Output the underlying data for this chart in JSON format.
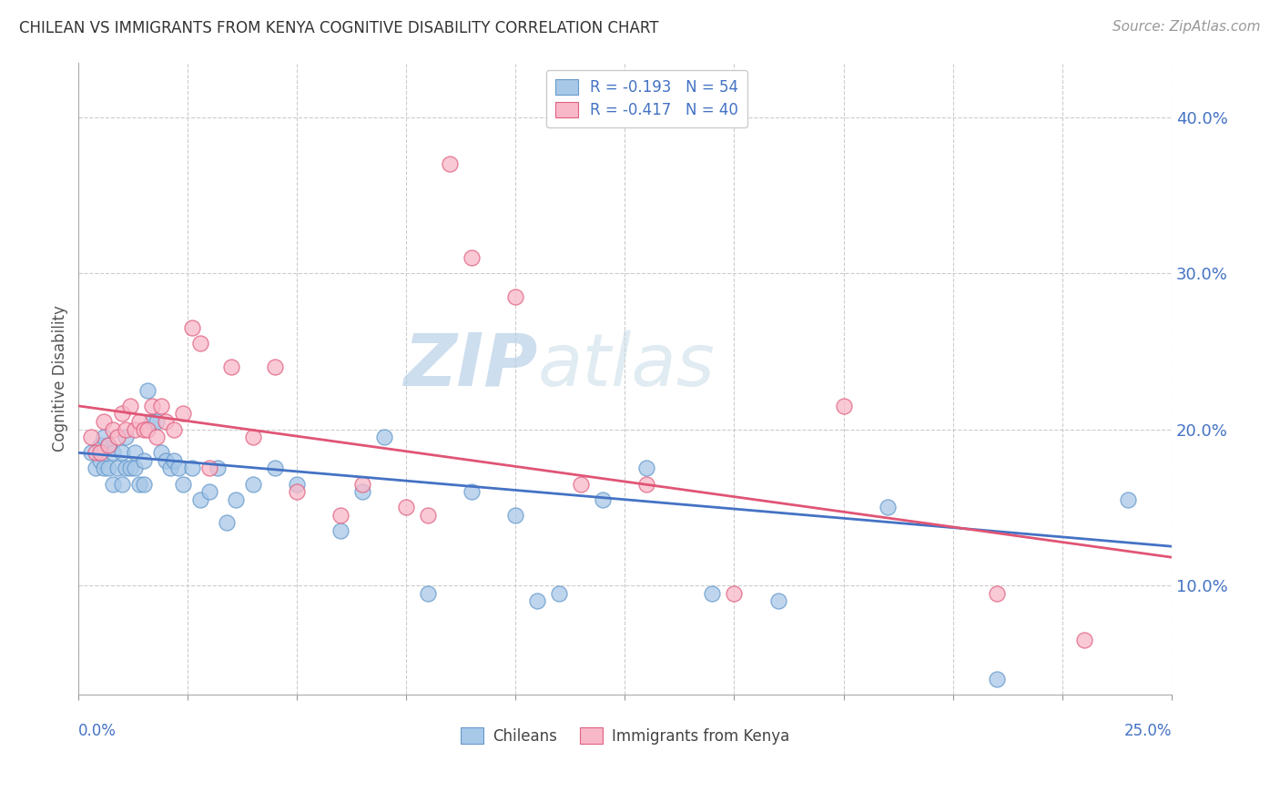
{
  "title": "CHILEAN VS IMMIGRANTS FROM KENYA COGNITIVE DISABILITY CORRELATION CHART",
  "source": "Source: ZipAtlas.com",
  "ylabel": "Cognitive Disability",
  "yticks": [
    0.1,
    0.2,
    0.3,
    0.4
  ],
  "ytick_labels": [
    "10.0%",
    "20.0%",
    "30.0%",
    "40.0%"
  ],
  "xlim": [
    0.0,
    0.25
  ],
  "ylim": [
    0.03,
    0.435
  ],
  "watermark_zip": "ZIP",
  "watermark_atlas": "atlas",
  "blue_scatter_color": "#a8c8e8",
  "blue_edge_color": "#6699cc",
  "pink_scatter_color": "#f8b8c8",
  "pink_edge_color": "#e06080",
  "blue_line_color": "#4472c4",
  "pink_line_color": "#e05575",
  "legend_text_color": "#4472c4",
  "legend_box_color": "#f0f4fa",
  "legend_border_color": "#cccccc",
  "chileans_x": [
    0.003,
    0.004,
    0.005,
    0.005,
    0.006,
    0.006,
    0.007,
    0.007,
    0.008,
    0.008,
    0.009,
    0.01,
    0.01,
    0.011,
    0.011,
    0.012,
    0.013,
    0.013,
    0.014,
    0.015,
    0.015,
    0.016,
    0.017,
    0.018,
    0.019,
    0.02,
    0.021,
    0.022,
    0.023,
    0.024,
    0.026,
    0.028,
    0.03,
    0.032,
    0.034,
    0.036,
    0.04,
    0.045,
    0.05,
    0.06,
    0.065,
    0.07,
    0.08,
    0.09,
    0.1,
    0.105,
    0.11,
    0.12,
    0.13,
    0.145,
    0.16,
    0.185,
    0.21,
    0.24
  ],
  "chileans_y": [
    0.185,
    0.175,
    0.18,
    0.19,
    0.175,
    0.195,
    0.175,
    0.19,
    0.165,
    0.185,
    0.175,
    0.165,
    0.185,
    0.175,
    0.195,
    0.175,
    0.185,
    0.175,
    0.165,
    0.18,
    0.165,
    0.225,
    0.205,
    0.205,
    0.185,
    0.18,
    0.175,
    0.18,
    0.175,
    0.165,
    0.175,
    0.155,
    0.16,
    0.175,
    0.14,
    0.155,
    0.165,
    0.175,
    0.165,
    0.135,
    0.16,
    0.195,
    0.095,
    0.16,
    0.145,
    0.09,
    0.095,
    0.155,
    0.175,
    0.095,
    0.09,
    0.15,
    0.04,
    0.155
  ],
  "kenya_x": [
    0.003,
    0.004,
    0.005,
    0.006,
    0.007,
    0.008,
    0.009,
    0.01,
    0.011,
    0.012,
    0.013,
    0.014,
    0.015,
    0.016,
    0.017,
    0.018,
    0.019,
    0.02,
    0.022,
    0.024,
    0.026,
    0.028,
    0.03,
    0.035,
    0.04,
    0.045,
    0.05,
    0.06,
    0.065,
    0.075,
    0.08,
    0.085,
    0.09,
    0.1,
    0.115,
    0.13,
    0.15,
    0.175,
    0.21,
    0.23
  ],
  "kenya_y": [
    0.195,
    0.185,
    0.185,
    0.205,
    0.19,
    0.2,
    0.195,
    0.21,
    0.2,
    0.215,
    0.2,
    0.205,
    0.2,
    0.2,
    0.215,
    0.195,
    0.215,
    0.205,
    0.2,
    0.21,
    0.265,
    0.255,
    0.175,
    0.24,
    0.195,
    0.24,
    0.16,
    0.145,
    0.165,
    0.15,
    0.145,
    0.37,
    0.31,
    0.285,
    0.165,
    0.165,
    0.095,
    0.215,
    0.095,
    0.065
  ],
  "blue_trend_x0": 0.0,
  "blue_trend_y0": 0.185,
  "blue_trend_x1": 0.25,
  "blue_trend_y1": 0.125,
  "pink_trend_x0": 0.0,
  "pink_trend_y0": 0.215,
  "pink_trend_x1": 0.25,
  "pink_trend_y1": 0.118
}
